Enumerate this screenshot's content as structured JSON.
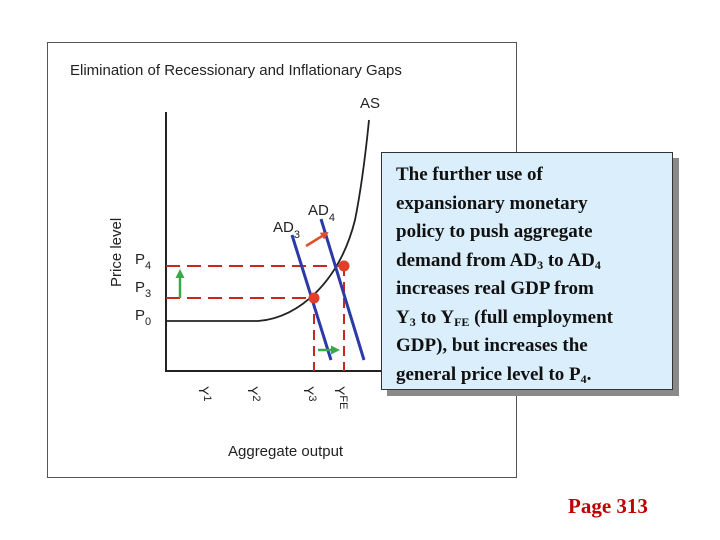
{
  "diagram": {
    "title": "Elimination of Recessionary and Inflationary Gaps",
    "y_axis_label": "Price level",
    "x_axis_label": "Aggregate output",
    "curves": {
      "as": "AS",
      "ad3": {
        "base": "AD",
        "sub": "3"
      },
      "ad4": {
        "base": "AD",
        "sub": "4"
      }
    },
    "price_levels": [
      {
        "base": "P",
        "sub": "4"
      },
      {
        "base": "P",
        "sub": "3"
      },
      {
        "base": "P",
        "sub": "0"
      }
    ],
    "output_levels": [
      {
        "base": "Y",
        "sub": "1"
      },
      {
        "base": "Y",
        "sub": "2"
      },
      {
        "base": "Y",
        "sub": "3"
      },
      {
        "base": "Y",
        "sub": "FE"
      }
    ],
    "colors": {
      "ad_line": "#2b3aa8",
      "dashed": "#c8281e",
      "equilibrium_dot": "#e0402a",
      "shift_arrow": "#e0502a",
      "change_arrow": "#3aa84a",
      "callout_fill": "#dbeefb",
      "page_ref": "#c00000"
    }
  },
  "callout": {
    "line1": "The further use of",
    "line2": "expansionary monetary",
    "line3": "policy to push aggregate",
    "line4_a": "demand from AD",
    "line4_sub1": "3",
    "line4_b": " to AD",
    "line4_sub2": "4",
    "line5": "increases real GDP from",
    "line6_a": "Y",
    "line6_sub1": "3",
    "line6_b": " to Y",
    "line6_sub2": "FE",
    "line6_c": " (full employment",
    "line7": "GDP), but increases the",
    "line8_a": "general price level to P",
    "line8_sub": "4",
    "line8_b": "."
  },
  "page_reference": "Page 313"
}
